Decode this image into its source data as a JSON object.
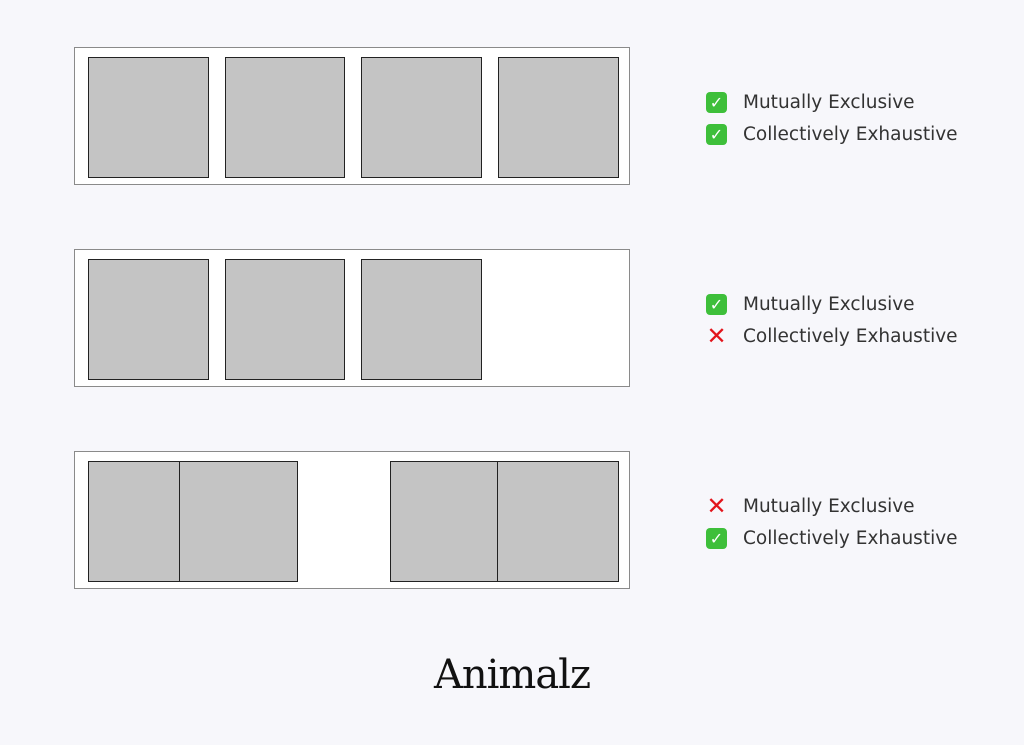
{
  "rows": [
    {
      "criteria": [
        {
          "icon": "check-icon",
          "status": "pass",
          "label": "Mutually Exclusive"
        },
        {
          "icon": "check-icon",
          "status": "pass",
          "label": "Collectively Exhaustive"
        }
      ]
    },
    {
      "criteria": [
        {
          "icon": "check-icon",
          "status": "pass",
          "label": "Mutually Exclusive"
        },
        {
          "icon": "cross-icon",
          "status": "fail",
          "label": "Collectively Exhaustive"
        }
      ]
    },
    {
      "criteria": [
        {
          "icon": "cross-icon",
          "status": "fail",
          "label": "Mutually Exclusive"
        },
        {
          "icon": "check-icon",
          "status": "pass",
          "label": "Collectively Exhaustive"
        }
      ]
    }
  ],
  "colors": {
    "pass": "#3ebf3a",
    "fail": "#e3141b",
    "block": "#c4c4c4"
  },
  "logo": "Animalz"
}
